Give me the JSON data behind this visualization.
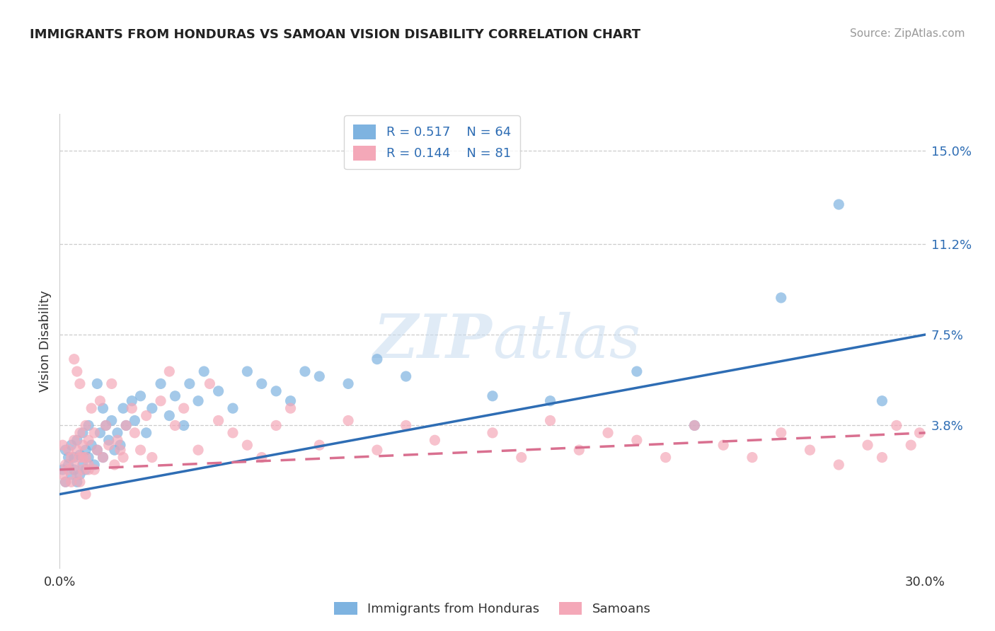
{
  "title": "IMMIGRANTS FROM HONDURAS VS SAMOAN VISION DISABILITY CORRELATION CHART",
  "source": "Source: ZipAtlas.com",
  "ylabel": "Vision Disability",
  "legend_label1": "Immigrants from Honduras",
  "legend_label2": "Samoans",
  "r1": "0.517",
  "n1": "64",
  "r2": "0.144",
  "n2": "81",
  "xlim": [
    0.0,
    0.3
  ],
  "ylim": [
    -0.02,
    0.165
  ],
  "yticks": [
    0.038,
    0.075,
    0.112,
    0.15
  ],
  "ytick_labels": [
    "3.8%",
    "7.5%",
    "11.2%",
    "15.0%"
  ],
  "color_blue": "#7EB3E0",
  "color_pink": "#F4A8B8",
  "color_blue_line": "#2E6DB4",
  "color_pink_line": "#D97090",
  "background": "#FFFFFF",
  "blue_line_start": 0.01,
  "blue_line_end": 0.075,
  "pink_line_start": 0.02,
  "pink_line_end": 0.035,
  "blue_scatter_x": [
    0.001,
    0.002,
    0.002,
    0.003,
    0.003,
    0.004,
    0.004,
    0.005,
    0.005,
    0.006,
    0.006,
    0.007,
    0.007,
    0.008,
    0.008,
    0.009,
    0.009,
    0.01,
    0.01,
    0.011,
    0.012,
    0.013,
    0.013,
    0.014,
    0.015,
    0.015,
    0.016,
    0.017,
    0.018,
    0.019,
    0.02,
    0.021,
    0.022,
    0.023,
    0.025,
    0.026,
    0.028,
    0.03,
    0.032,
    0.035,
    0.038,
    0.04,
    0.043,
    0.045,
    0.048,
    0.05,
    0.055,
    0.06,
    0.065,
    0.07,
    0.075,
    0.08,
    0.085,
    0.09,
    0.1,
    0.11,
    0.12,
    0.15,
    0.17,
    0.2,
    0.22,
    0.25,
    0.27,
    0.285
  ],
  "blue_scatter_y": [
    0.02,
    0.015,
    0.028,
    0.022,
    0.025,
    0.018,
    0.03,
    0.02,
    0.025,
    0.015,
    0.032,
    0.018,
    0.026,
    0.022,
    0.035,
    0.028,
    0.02,
    0.025,
    0.038,
    0.03,
    0.022,
    0.028,
    0.055,
    0.035,
    0.025,
    0.045,
    0.038,
    0.032,
    0.04,
    0.028,
    0.035,
    0.03,
    0.045,
    0.038,
    0.048,
    0.04,
    0.05,
    0.035,
    0.045,
    0.055,
    0.042,
    0.05,
    0.038,
    0.055,
    0.048,
    0.06,
    0.052,
    0.045,
    0.06,
    0.055,
    0.052,
    0.048,
    0.06,
    0.058,
    0.055,
    0.065,
    0.058,
    0.05,
    0.048,
    0.06,
    0.038,
    0.09,
    0.128,
    0.048
  ],
  "pink_scatter_x": [
    0.001,
    0.001,
    0.002,
    0.002,
    0.003,
    0.003,
    0.004,
    0.004,
    0.005,
    0.005,
    0.006,
    0.006,
    0.007,
    0.007,
    0.008,
    0.008,
    0.009,
    0.009,
    0.01,
    0.01,
    0.011,
    0.012,
    0.012,
    0.013,
    0.014,
    0.015,
    0.016,
    0.017,
    0.018,
    0.019,
    0.02,
    0.021,
    0.022,
    0.023,
    0.025,
    0.026,
    0.028,
    0.03,
    0.032,
    0.035,
    0.038,
    0.04,
    0.043,
    0.048,
    0.052,
    0.055,
    0.06,
    0.065,
    0.07,
    0.075,
    0.08,
    0.09,
    0.1,
    0.11,
    0.12,
    0.13,
    0.15,
    0.16,
    0.17,
    0.18,
    0.19,
    0.2,
    0.21,
    0.22,
    0.23,
    0.24,
    0.25,
    0.26,
    0.27,
    0.28,
    0.285,
    0.29,
    0.295,
    0.298,
    0.005,
    0.006,
    0.007,
    0.007,
    0.008,
    0.009,
    0.01
  ],
  "pink_scatter_y": [
    0.018,
    0.03,
    0.022,
    0.015,
    0.028,
    0.02,
    0.025,
    0.015,
    0.032,
    0.022,
    0.018,
    0.028,
    0.025,
    0.035,
    0.02,
    0.03,
    0.025,
    0.038,
    0.022,
    0.032,
    0.045,
    0.02,
    0.035,
    0.028,
    0.048,
    0.025,
    0.038,
    0.03,
    0.055,
    0.022,
    0.032,
    0.028,
    0.025,
    0.038,
    0.045,
    0.035,
    0.028,
    0.042,
    0.025,
    0.048,
    0.06,
    0.038,
    0.045,
    0.028,
    0.055,
    0.04,
    0.035,
    0.03,
    0.025,
    0.038,
    0.045,
    0.03,
    0.04,
    0.028,
    0.038,
    0.032,
    0.035,
    0.025,
    0.04,
    0.028,
    0.035,
    0.032,
    0.025,
    0.038,
    0.03,
    0.025,
    0.035,
    0.028,
    0.022,
    0.03,
    0.025,
    0.038,
    0.03,
    0.035,
    0.065,
    0.06,
    0.055,
    0.015,
    0.025,
    0.01,
    0.02
  ]
}
